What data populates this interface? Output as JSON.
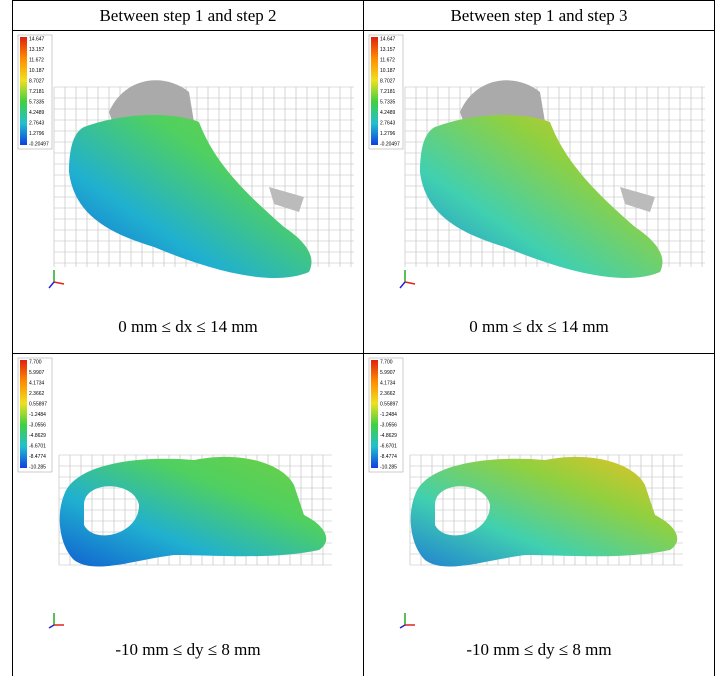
{
  "table": {
    "header": [
      "Between step 1 and step 2",
      "Between step 1 and step 3"
    ],
    "rows": [
      {
        "cells": [
          {
            "legend": [
              "14.647",
              "13.157",
              "11.672",
              "10.187",
              "8.7027",
              "7.2181",
              "5.7335",
              "4.2489",
              "2.7643",
              "1.2796",
              "-0.20497"
            ],
            "caption": "0 mm ≤ dx ≤ 14 mm"
          },
          {
            "legend": [
              "14.647",
              "13.157",
              "11.672",
              "10.187",
              "8.7027",
              "7.2181",
              "5.7335",
              "4.2489",
              "2.7643",
              "1.2796",
              "-0.20497"
            ],
            "caption": "0 mm ≤ dx ≤ 14 mm"
          }
        ]
      },
      {
        "cells": [
          {
            "legend": [
              "7.700",
              "5.9907",
              "4.1734",
              "2.3662",
              "0.55897",
              "-1.2484",
              "-3.0556",
              "-4.8629",
              "-6.6701",
              "-8.4774",
              "-10.285"
            ],
            "caption": "-10 mm ≤ dy ≤ 8 mm"
          },
          {
            "legend": [
              "7.700",
              "5.9907",
              "4.1734",
              "2.3662",
              "0.55897",
              "-1.2484",
              "-3.0556",
              "-4.8629",
              "-6.6701",
              "-8.4774",
              "-10.285"
            ],
            "caption": "-10 mm ≤ dy ≤ 8 mm"
          }
        ]
      }
    ]
  }
}
